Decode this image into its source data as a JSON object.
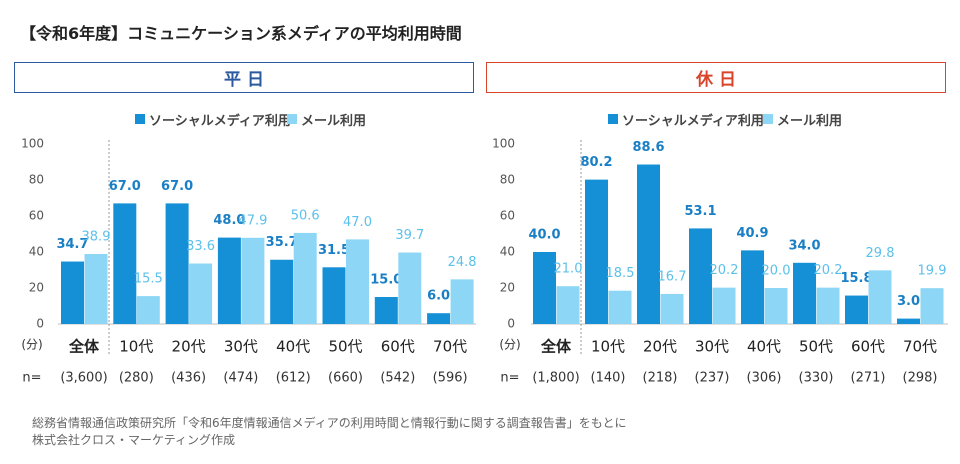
{
  "title": "【令和6年度】コミュニケーション系メディアの平均利用時間",
  "colors": {
    "social": "#1590d6",
    "mail": "#8ed6f5",
    "social_label": "#1a7fc4",
    "mail_label": "#5bc0eb",
    "weekday": "#2c5aa0",
    "holiday": "#d9452b"
  },
  "chart_data": [
    {
      "type": "bar",
      "panel_title": "平 日",
      "categories": [
        "全体",
        "10代",
        "20代",
        "30代",
        "40代",
        "50代",
        "60代",
        "70代"
      ],
      "series": [
        {
          "name": "ソーシャルメディア利用",
          "values": [
            34.7,
            67.0,
            67.0,
            48.0,
            35.7,
            31.5,
            15.0,
            6.0
          ]
        },
        {
          "name": "メール利用",
          "values": [
            38.9,
            15.5,
            33.6,
            47.9,
            50.6,
            47.0,
            39.7,
            24.8
          ]
        }
      ],
      "ylim": [
        0,
        100
      ],
      "yticks": [
        0,
        20,
        40,
        60,
        80,
        100
      ],
      "unit_label": "(分)",
      "n_label": "n=",
      "n_values": [
        "(3,600)",
        "(280)",
        "(436)",
        "(474)",
        "(612)",
        "(660)",
        "(542)",
        "(596)"
      ]
    },
    {
      "type": "bar",
      "panel_title": "休 日",
      "categories": [
        "全体",
        "10代",
        "20代",
        "30代",
        "40代",
        "50代",
        "60代",
        "70代"
      ],
      "series": [
        {
          "name": "ソーシャルメディア利用",
          "values": [
            40.0,
            80.2,
            88.6,
            53.1,
            40.9,
            34.0,
            15.8,
            3.0
          ]
        },
        {
          "name": "メール利用",
          "values": [
            21.0,
            18.5,
            16.7,
            20.2,
            20.0,
            20.2,
            29.8,
            19.9
          ]
        }
      ],
      "ylim": [
        0,
        100
      ],
      "yticks": [
        0,
        20,
        40,
        60,
        80,
        100
      ],
      "unit_label": "(分)",
      "n_label": "n=",
      "n_values": [
        "(1,800)",
        "(140)",
        "(218)",
        "(237)",
        "(306)",
        "(330)",
        "(271)",
        "(298)"
      ]
    }
  ],
  "source": {
    "line1": "総務省情報通信政策研究所「令和6年度情報通信メディアの利用時間と情報行動に関する調査報告書」をもとに",
    "line2": "株式会社クロス・マーケティング作成"
  }
}
